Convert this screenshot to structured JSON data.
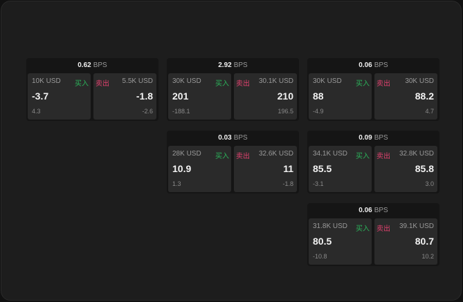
{
  "labels": {
    "unit": "BPS",
    "buy": "买入",
    "sell": "卖出"
  },
  "colors": {
    "buy": "#2bb35a",
    "sell": "#e0416e"
  },
  "tiles": [
    {
      "spread": "0.62",
      "bid": {
        "qty": "10K USD",
        "price": "-3.7",
        "change": "4.3"
      },
      "ask": {
        "qty": "5.5K USD",
        "price": "-1.8",
        "change": "-2.6"
      }
    },
    {
      "spread": "2.92",
      "bid": {
        "qty": "30K USD",
        "price": "201",
        "change": "-188.1"
      },
      "ask": {
        "qty": "30.1K USD",
        "price": "210",
        "change": "196.5"
      }
    },
    {
      "spread": "0.06",
      "bid": {
        "qty": "30K USD",
        "price": "88",
        "change": "-4.9"
      },
      "ask": {
        "qty": "30K USD",
        "price": "88.2",
        "change": "4.7"
      }
    },
    {
      "spread": "0.03",
      "bid": {
        "qty": "28K USD",
        "price": "10.9",
        "change": "1.3"
      },
      "ask": {
        "qty": "32.6K USD",
        "price": "11",
        "change": "-1.8"
      }
    },
    {
      "spread": "0.09",
      "bid": {
        "qty": "34.1K USD",
        "price": "85.5",
        "change": "-3.1"
      },
      "ask": {
        "qty": "32.8K USD",
        "price": "85.8",
        "change": "3.0"
      }
    },
    {
      "spread": "0.06",
      "bid": {
        "qty": "31.8K USD",
        "price": "80.5",
        "change": "-10.8"
      },
      "ask": {
        "qty": "39.1K USD",
        "price": "80.7",
        "change": "10.2"
      }
    }
  ]
}
